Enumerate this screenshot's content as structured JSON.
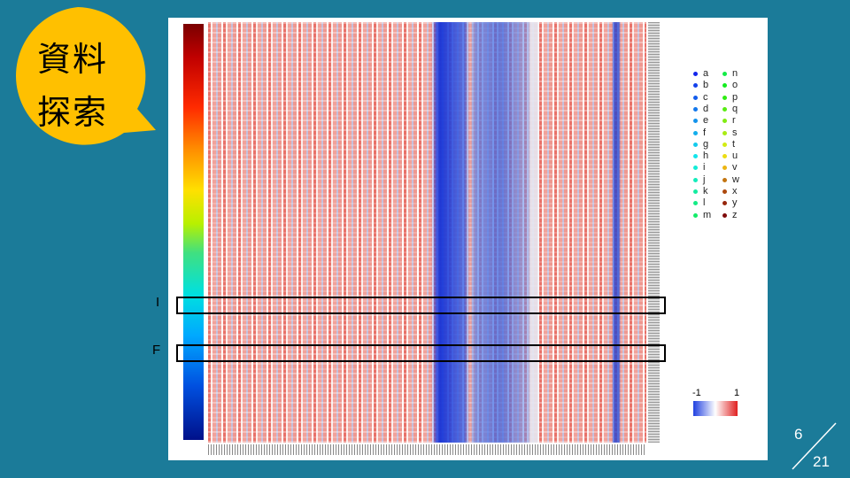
{
  "bubble": {
    "lines": [
      "資料",
      "探索"
    ]
  },
  "markers": [
    "I",
    "F"
  ],
  "legend": {
    "items": [
      "a",
      "b",
      "c",
      "d",
      "e",
      "f",
      "g",
      "h",
      "i",
      "j",
      "k",
      "l",
      "m",
      "n",
      "o",
      "p",
      "q",
      "r",
      "s",
      "t",
      "u",
      "v",
      "w",
      "x",
      "y",
      "z"
    ]
  },
  "colorbar": {
    "min_label": "-1",
    "max_label": "1"
  },
  "page": {
    "current": "6",
    "total": "21"
  }
}
